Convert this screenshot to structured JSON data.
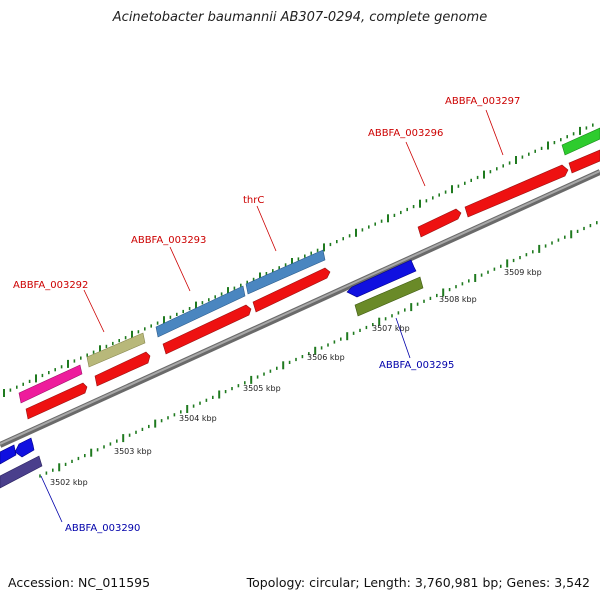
{
  "title": "Acinetobacter baumannii AB307-0294, complete genome",
  "footer": {
    "accession": "Accession: NC_011595",
    "summary": "Topology: circular; Length: 3,760,981 bp; Genes: 3,542"
  },
  "colors": {
    "backbone": "#8f8f8f",
    "tick": "#1f7a1f",
    "forward_label": "#cc0000",
    "reverse_label": "#0000aa",
    "cds_red": "#ee1111",
    "pink": "#ee1c9c",
    "khaki": "#b8b87a",
    "steelblue": "#4a86c0",
    "blue": "#1010e0",
    "olive": "#6a8a28",
    "green": "#2ecc2e",
    "slateblue": "#4a3f8c"
  },
  "kbp_labels": [
    "3502 kbp",
    "3503 kbp",
    "3504 kbp",
    "3505 kbp",
    "3506 kbp",
    "3507 kbp",
    "3508 kbp",
    "3509 kbp"
  ],
  "gene_labels": [
    {
      "text": "ABBFA_003297",
      "strand": "forward"
    },
    {
      "text": "ABBFA_003296",
      "strand": "forward"
    },
    {
      "text": "thrC",
      "strand": "forward"
    },
    {
      "text": "ABBFA_003293",
      "strand": "forward"
    },
    {
      "text": "ABBFA_003292",
      "strand": "forward"
    },
    {
      "text": "ABBFA_003295",
      "strand": "reverse"
    },
    {
      "text": "ABBFA_003290",
      "strand": "reverse"
    }
  ]
}
